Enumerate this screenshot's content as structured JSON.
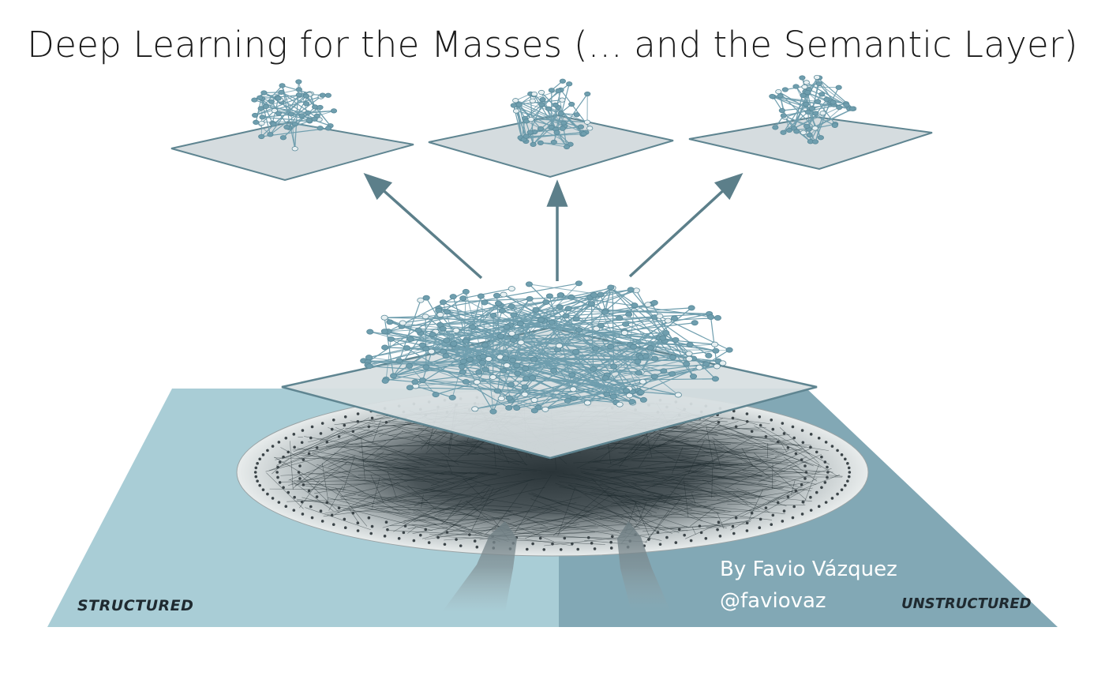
{
  "title": "Deep Learning for the Masses (... and the Semantic Layer)",
  "labels": {
    "structured": "STRUCTURED",
    "unstructured": "UNSTRUCTURED"
  },
  "credit": {
    "name": "By Favio Vázquez",
    "handle": "@faviovaz"
  },
  "colors": {
    "structured_panel": "#a9cdd6",
    "unstructured_panel": "#82a8b5",
    "plane": "#d7dfe1",
    "plane_edge": "#5f8591",
    "node": "#6f9eae",
    "node_light": "#e8f0f2",
    "arrow": "#5c7f8a",
    "dense_network": "#1e2a2e"
  },
  "icons": {
    "arrows": "up-arrow-icon",
    "network": "network-graph"
  }
}
